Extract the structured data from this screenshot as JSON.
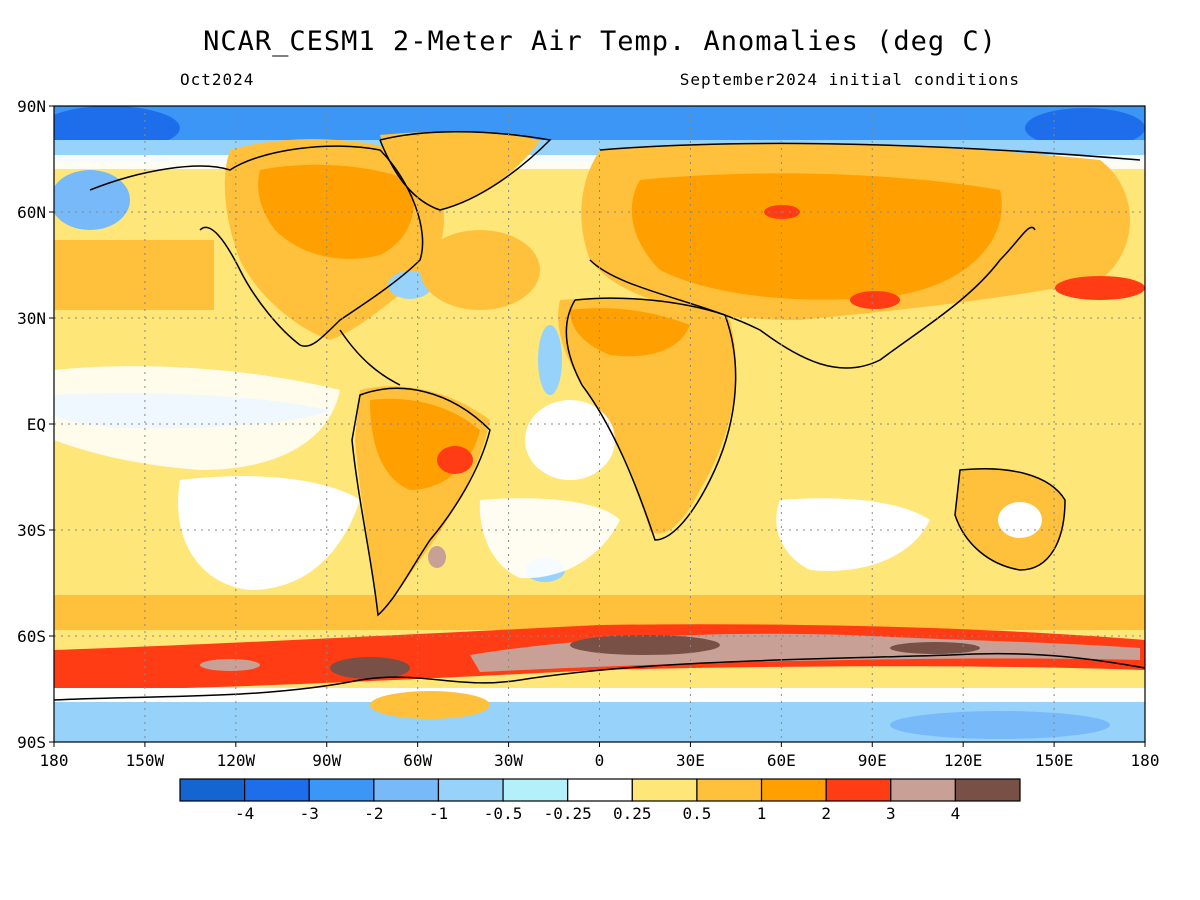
{
  "header": {
    "title": "NCAR_CESM1 2-Meter Air Temp. Anomalies (deg C)",
    "valid_month": "Oct2024",
    "initial_conditions": "September2024 initial conditions"
  },
  "axes": {
    "lat_labels": [
      "90N",
      "60N",
      "30N",
      "EQ",
      "30S",
      "60S",
      "90S"
    ],
    "lon_labels": [
      "180",
      "150W",
      "120W",
      "90W",
      "60W",
      "30W",
      "0",
      "30E",
      "60E",
      "90E",
      "120E",
      "150E",
      "180"
    ]
  },
  "colorbar": {
    "colors": [
      "#1464d2",
      "#1e6eeb",
      "#3c96f5",
      "#78b9fa",
      "#96d2fa",
      "#b4f0fa",
      "#ffffff",
      "#ffe678",
      "#ffc03c",
      "#ffa000",
      "#ff3c14",
      "#c8a096",
      "#785046"
    ],
    "labels": [
      "-4",
      "-3",
      "-2",
      "-1",
      "-0.5",
      "-0.25",
      "0.25",
      "0.5",
      "1",
      "2",
      "3",
      "4"
    ]
  }
}
